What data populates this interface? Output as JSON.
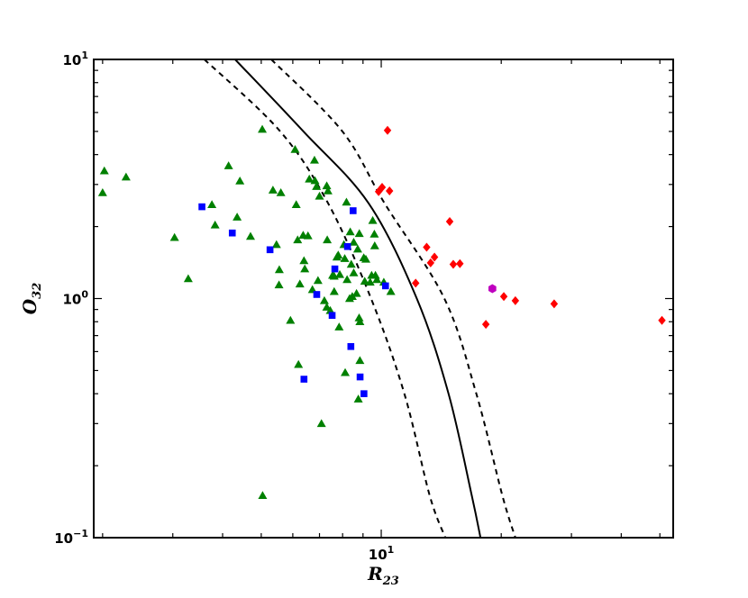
{
  "chart_data": {
    "type": "scatter",
    "xscale": "log",
    "yscale": "log",
    "xlim": [
      1.9,
      54
    ],
    "ylim": [
      0.1,
      10
    ],
    "xlabel": {
      "main": "R",
      "sub": "23"
    },
    "ylabel": {
      "main": "O",
      "sub": "32"
    },
    "y_ticks": [
      {
        "value": 0.1,
        "base": "10",
        "exp": "−1"
      },
      {
        "value": 1,
        "base": "10",
        "exp": "0"
      },
      {
        "value": 10,
        "base": "10",
        "exp": "1"
      }
    ],
    "x_ticks": [
      {
        "value": 10,
        "base": "10",
        "exp": "1"
      }
    ],
    "x_minor_ticks": [
      2,
      3,
      4,
      5,
      6,
      7,
      8,
      9,
      20,
      30,
      40,
      50
    ],
    "y_minor_ticks": [
      0.2,
      0.3,
      0.4,
      0.5,
      0.6,
      0.7,
      0.8,
      0.9,
      2,
      3,
      4,
      5,
      6,
      7,
      8,
      9
    ],
    "grid": false,
    "curves": [
      {
        "style": "solid",
        "x": [
          4.3,
          6.38,
          9.3,
          12.28,
          14.75,
          16.87,
          17.74
        ],
        "y": [
          10,
          5,
          2.5,
          1,
          0.4,
          0.15,
          0.1
        ]
      },
      {
        "style": "dashed",
        "x": [
          3.6,
          5.58,
          7.36,
          9.43,
          11.43,
          13.23,
          14.48
        ],
        "y": [
          10,
          5,
          2.5,
          1,
          0.4,
          0.15,
          0.1
        ]
      },
      {
        "style": "dashed",
        "x": [
          5.3,
          7.99,
          10.2,
          14.4,
          17.32,
          20.13,
          21.7
        ],
        "y": [
          10,
          5,
          2.5,
          1,
          0.4,
          0.15,
          0.1
        ]
      }
    ],
    "series": [
      {
        "marker": "triangle",
        "color": "#008000",
        "points": [
          [
            2.0,
            2.77
          ],
          [
            2.02,
            3.42
          ],
          [
            2.29,
            3.22
          ],
          [
            3.03,
            1.8
          ],
          [
            3.28,
            1.21
          ],
          [
            3.76,
            2.47
          ],
          [
            3.83,
            2.03
          ],
          [
            4.14,
            3.59
          ],
          [
            4.35,
            2.19
          ],
          [
            4.42,
            3.1
          ],
          [
            4.7,
            1.82
          ],
          [
            5.03,
            5.1
          ],
          [
            5.35,
            2.84
          ],
          [
            5.46,
            1.68
          ],
          [
            5.54,
            1.14
          ],
          [
            5.55,
            1.32
          ],
          [
            5.6,
            2.77
          ],
          [
            5.92,
            0.81
          ],
          [
            6.08,
            4.2
          ],
          [
            6.12,
            2.47
          ],
          [
            6.17,
            1.76
          ],
          [
            6.2,
            0.53
          ],
          [
            6.25,
            1.15
          ],
          [
            6.37,
            1.84
          ],
          [
            6.4,
            1.44
          ],
          [
            6.43,
            1.33
          ],
          [
            6.55,
            1.83
          ],
          [
            6.6,
            3.16
          ],
          [
            6.72,
            1.09
          ],
          [
            6.8,
            3.79
          ],
          [
            6.82,
            3.11
          ],
          [
            6.88,
            2.94
          ],
          [
            6.94,
            1.19
          ],
          [
            7.0,
            2.68
          ],
          [
            7.08,
            0.3
          ],
          [
            7.2,
            0.98
          ],
          [
            7.3,
            2.96
          ],
          [
            7.3,
            0.92
          ],
          [
            7.32,
            1.76
          ],
          [
            7.35,
            2.82
          ],
          [
            7.45,
            0.89
          ],
          [
            7.55,
            1.25
          ],
          [
            7.62,
            1.24
          ],
          [
            7.62,
            1.07
          ],
          [
            7.74,
            1.49
          ],
          [
            7.8,
            1.52
          ],
          [
            7.84,
            0.76
          ],
          [
            7.87,
            1.26
          ],
          [
            8.06,
            1.68
          ],
          [
            8.1,
            1.47
          ],
          [
            8.12,
            0.49
          ],
          [
            8.18,
            2.53
          ],
          [
            8.21,
            1.2
          ],
          [
            8.33,
            1.0
          ],
          [
            8.36,
            1.9
          ],
          [
            8.41,
            1.39
          ],
          [
            8.46,
            1.02
          ],
          [
            8.53,
            1.28
          ],
          [
            8.53,
            1.72
          ],
          [
            8.67,
            1.05
          ],
          [
            8.73,
            1.61
          ],
          [
            8.76,
            0.38
          ],
          [
            8.8,
            0.83
          ],
          [
            8.81,
            1.87
          ],
          [
            8.84,
            0.55
          ],
          [
            8.84,
            0.8
          ],
          [
            9.04,
            1.48
          ],
          [
            9.09,
            1.18
          ],
          [
            9.15,
            1.46
          ],
          [
            9.38,
            1.17
          ],
          [
            9.46,
            1.25
          ],
          [
            9.52,
            2.12
          ],
          [
            9.61,
            1.86
          ],
          [
            9.63,
            1.66
          ],
          [
            9.67,
            1.25
          ],
          [
            9.75,
            1.2
          ],
          [
            10.15,
            1.17
          ],
          [
            10.57,
            1.07
          ],
          [
            5.04,
            0.15
          ]
        ]
      },
      {
        "marker": "square",
        "color": "#0000ff",
        "points": [
          [
            3.55,
            2.42
          ],
          [
            4.23,
            1.88
          ],
          [
            5.26,
            1.6
          ],
          [
            6.4,
            0.46
          ],
          [
            6.89,
            1.04
          ],
          [
            7.53,
            0.85
          ],
          [
            7.65,
            1.33
          ],
          [
            8.23,
            1.65
          ],
          [
            8.39,
            0.63
          ],
          [
            8.5,
            2.33
          ],
          [
            8.85,
            0.47
          ],
          [
            9.05,
            0.4
          ],
          [
            10.25,
            1.13
          ]
        ]
      },
      {
        "marker": "diamond",
        "color": "#ff0000",
        "points": [
          [
            10.37,
            5.05
          ],
          [
            9.85,
            2.8
          ],
          [
            10.05,
            2.92
          ],
          [
            10.49,
            2.82
          ],
          [
            12.2,
            1.16
          ],
          [
            13.0,
            1.64
          ],
          [
            13.3,
            1.41
          ],
          [
            13.6,
            1.49
          ],
          [
            14.85,
            2.1
          ],
          [
            15.16,
            1.39
          ],
          [
            15.75,
            1.4
          ],
          [
            18.3,
            0.78
          ],
          [
            20.3,
            1.02
          ],
          [
            21.7,
            0.98
          ],
          [
            27.15,
            0.95
          ],
          [
            50.6,
            0.81
          ]
        ]
      },
      {
        "marker": "hexagon",
        "color": "#bf00bf",
        "points": [
          [
            19.0,
            1.1
          ]
        ]
      }
    ]
  }
}
